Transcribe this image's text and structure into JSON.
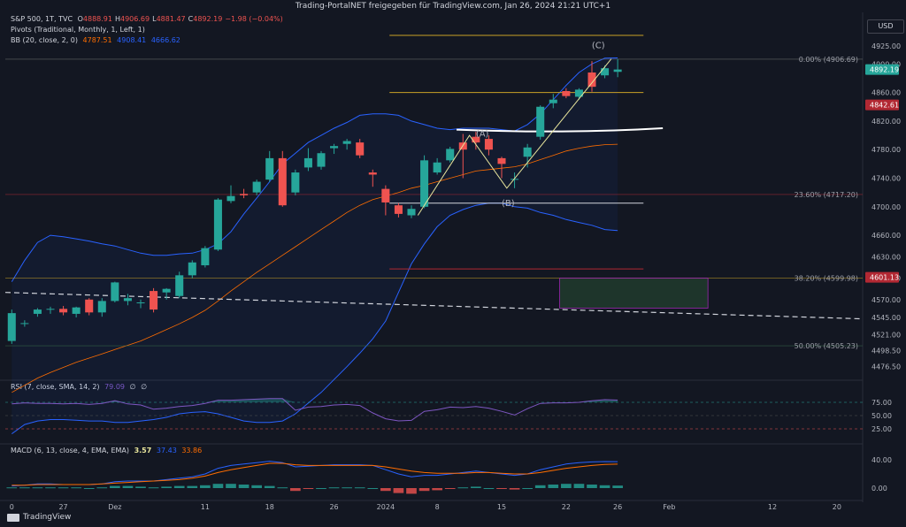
{
  "header": {
    "published": "Trading-PortalNET freigegeben für TradingView.com, Jan 26, 2024 21:21 UTC+1"
  },
  "legend": {
    "symbol": "S&P 500, 1T, TVC",
    "ohlc": [
      {
        "label": "O",
        "value": "4888.91"
      },
      {
        "label": "H",
        "value": "4906.69"
      },
      {
        "label": "L",
        "value": "4881.47"
      },
      {
        "label": "C",
        "value": "4892.19"
      },
      {
        "label": "",
        "value": "−1.98 (−0.04%)"
      }
    ],
    "pivots": "Pivots (Traditional, Monthly, 1, Left, 1)",
    "bb_label": "BB (20, close, 2, 0)",
    "bb_values": [
      "4787.51",
      "4908.41",
      "4666.62"
    ],
    "rsi_label": "RSI (7, close, SMA, 14, 2)",
    "rsi_values": [
      "79.09",
      "∅",
      "∅"
    ],
    "macd_label": "MACD (6, 13, close, 4, EMA, EMA)",
    "macd_values": [
      "3.57",
      "37.43",
      "33.86"
    ]
  },
  "currency": "USD",
  "brand": "TradingView",
  "colors": {
    "background": "#131722",
    "up": "#26a69a",
    "down": "#ef5350",
    "bb_line": "#2962ff",
    "bb_basis": "#ff6d00",
    "fib_gold": "#c9a227",
    "fib_red": "#b22833",
    "wave": "#e8e59c",
    "rsi": "#7e57c2",
    "macd": "#2962ff",
    "signal": "#ff6d00"
  },
  "chart_data": {
    "type": "candlestick",
    "price_axis": {
      "range": [
        4462,
        4940
      ],
      "ticks": [
        "4925.00",
        "4900.00",
        "4860.00",
        "4820.00",
        "4780.00",
        "4740.00",
        "4700.00",
        "4660.00",
        "4630.00",
        "4600.00",
        "4570.00",
        "4545.00",
        "4521.00",
        "4498.50",
        "4476.50"
      ]
    },
    "price_labels": [
      {
        "value": 4892.19,
        "text": "4892.19",
        "color": "#26a69a"
      },
      {
        "value": 4842.61,
        "text": "4842.61",
        "color": "#b22833"
      },
      {
        "value": 4601.13,
        "text": "4601.13",
        "color": "#b22833"
      }
    ],
    "time_axis": {
      "labels": [
        {
          "text": "0",
          "index": 0
        },
        {
          "text": "27",
          "index": 4
        },
        {
          "text": "Dez",
          "index": 8
        },
        {
          "text": "11",
          "index": 15
        },
        {
          "text": "18",
          "index": 20
        },
        {
          "text": "26",
          "index": 25
        },
        {
          "text": "2024",
          "index": 29
        },
        {
          "text": "8",
          "index": 33
        },
        {
          "text": "15",
          "index": 38
        },
        {
          "text": "22",
          "index": 43
        },
        {
          "text": "26",
          "index": 47
        },
        {
          "text": "Feb",
          "index": 51
        },
        {
          "text": "12",
          "index": 59
        },
        {
          "text": "20",
          "index": 64
        }
      ],
      "index_range": [
        -0.5,
        66
      ]
    },
    "candles": [
      {
        "o": 4512,
        "h": 4556,
        "l": 4508,
        "c": 4551
      },
      {
        "o": 4537,
        "h": 4541,
        "l": 4532,
        "c": 4537
      },
      {
        "o": 4550,
        "h": 4558,
        "l": 4546,
        "c": 4556
      },
      {
        "o": 4556,
        "h": 4560,
        "l": 4550,
        "c": 4557
      },
      {
        "o": 4557,
        "h": 4561,
        "l": 4548,
        "c": 4552
      },
      {
        "o": 4550,
        "h": 4560,
        "l": 4545,
        "c": 4559
      },
      {
        "o": 4570,
        "h": 4572,
        "l": 4548,
        "c": 4552
      },
      {
        "o": 4552,
        "h": 4572,
        "l": 4546,
        "c": 4568
      },
      {
        "o": 4568,
        "h": 4595,
        "l": 4566,
        "c": 4594
      },
      {
        "o": 4568,
        "h": 4578,
        "l": 4562,
        "c": 4572
      },
      {
        "o": 4565,
        "h": 4570,
        "l": 4558,
        "c": 4566
      },
      {
        "o": 4582,
        "h": 4586,
        "l": 4552,
        "c": 4556
      },
      {
        "o": 4580,
        "h": 4586,
        "l": 4570,
        "c": 4585
      },
      {
        "o": 4575,
        "h": 4609,
        "l": 4572,
        "c": 4604
      },
      {
        "o": 4604,
        "h": 4625,
        "l": 4600,
        "c": 4622
      },
      {
        "o": 4618,
        "h": 4645,
        "l": 4615,
        "c": 4642
      },
      {
        "o": 4640,
        "h": 4712,
        "l": 4638,
        "c": 4710
      },
      {
        "o": 4708,
        "h": 4730,
        "l": 4705,
        "c": 4715
      },
      {
        "o": 4718,
        "h": 4725,
        "l": 4712,
        "c": 4716
      },
      {
        "o": 4720,
        "h": 4738,
        "l": 4716,
        "c": 4735
      },
      {
        "o": 4738,
        "h": 4778,
        "l": 4735,
        "c": 4768
      },
      {
        "o": 4768,
        "h": 4778,
        "l": 4700,
        "c": 4702
      },
      {
        "o": 4720,
        "h": 4752,
        "l": 4716,
        "c": 4748
      },
      {
        "o": 4755,
        "h": 4782,
        "l": 4750,
        "c": 4768
      },
      {
        "o": 4756,
        "h": 4778,
        "l": 4752,
        "c": 4775
      },
      {
        "o": 4782,
        "h": 4788,
        "l": 4774,
        "c": 4785
      },
      {
        "o": 4788,
        "h": 4795,
        "l": 4780,
        "c": 4792
      },
      {
        "o": 4790,
        "h": 4795,
        "l": 4768,
        "c": 4772
      },
      {
        "o": 4748,
        "h": 4752,
        "l": 4728,
        "c": 4745
      },
      {
        "o": 4725,
        "h": 4730,
        "l": 4688,
        "c": 4706
      },
      {
        "o": 4702,
        "h": 4705,
        "l": 4685,
        "c": 4690
      },
      {
        "o": 4688,
        "h": 4702,
        "l": 4684,
        "c": 4697
      },
      {
        "o": 4700,
        "h": 4772,
        "l": 4698,
        "c": 4765
      },
      {
        "o": 4748,
        "h": 4768,
        "l": 4745,
        "c": 4762
      },
      {
        "o": 4765,
        "h": 4784,
        "l": 4762,
        "c": 4781
      },
      {
        "o": 4790,
        "h": 4802,
        "l": 4740,
        "c": 4780
      },
      {
        "o": 4798,
        "h": 4805,
        "l": 4780,
        "c": 4790
      },
      {
        "o": 4795,
        "h": 4800,
        "l": 4772,
        "c": 4780
      },
      {
        "o": 4768,
        "h": 4770,
        "l": 4740,
        "c": 4760
      },
      {
        "o": 4739,
        "h": 4748,
        "l": 4726,
        "c": 4739
      },
      {
        "o": 4770,
        "h": 4788,
        "l": 4755,
        "c": 4783
      },
      {
        "o": 4798,
        "h": 4842,
        "l": 4794,
        "c": 4840
      },
      {
        "o": 4845,
        "h": 4858,
        "l": 4838,
        "c": 4850
      },
      {
        "o": 4862,
        "h": 4866,
        "l": 4852,
        "c": 4855
      },
      {
        "o": 4854,
        "h": 4866,
        "l": 4850,
        "c": 4864
      },
      {
        "o": 4888,
        "h": 4904,
        "l": 4861,
        "c": 4868
      },
      {
        "o": 4884,
        "h": 4898,
        "l": 4880,
        "c": 4894
      },
      {
        "o": 4888.91,
        "h": 4906.69,
        "l": 4881.47,
        "c": 4892.19
      }
    ],
    "bb_upper": [
      4595,
      4625,
      4650,
      4660,
      4658,
      4655,
      4652,
      4648,
      4645,
      4640,
      4635,
      4632,
      4632,
      4634,
      4635,
      4640,
      4648,
      4665,
      4690,
      4712,
      4735,
      4760,
      4775,
      4790,
      4800,
      4810,
      4818,
      4828,
      4830,
      4830,
      4828,
      4820,
      4815,
      4810,
      4808,
      4810,
      4810,
      4810,
      4808,
      4806,
      4815,
      4830,
      4850,
      4870,
      4888,
      4900,
      4908,
      4908.41
    ],
    "bb_lower": [
      4382,
      4395,
      4400,
      4402,
      4402,
      4401,
      4400,
      4400,
      4398,
      4398,
      4400,
      4402,
      4405,
      4410,
      4412,
      4413,
      4410,
      4405,
      4400,
      4398,
      4398,
      4400,
      4410,
      4425,
      4440,
      4458,
      4476,
      4495,
      4515,
      4540,
      4580,
      4620,
      4648,
      4672,
      4688,
      4696,
      4702,
      4705,
      4705,
      4700,
      4698,
      4692,
      4688,
      4682,
      4678,
      4674,
      4668,
      4666.62
    ],
    "bb_basis": [
      4440,
      4450,
      4460,
      4468,
      4475,
      4482,
      4488,
      4494,
      4500,
      4506,
      4512,
      4520,
      4528,
      4536,
      4545,
      4555,
      4568,
      4582,
      4595,
      4608,
      4620,
      4632,
      4644,
      4656,
      4668,
      4680,
      4692,
      4702,
      4710,
      4715,
      4720,
      4726,
      4730,
      4735,
      4740,
      4745,
      4750,
      4752,
      4754,
      4756,
      4760,
      4766,
      4772,
      4778,
      4782,
      4785,
      4787,
      4787.51
    ],
    "fib_levels": [
      {
        "label": "0.00% (4906.69)",
        "value": 4906.69
      },
      {
        "label": "23.60% (4717.20)",
        "value": 4717.2
      },
      {
        "label": "38.20% (4599.98)",
        "value": 4599.98
      },
      {
        "label": "50.00% (4505.23)",
        "value": 4505.23
      }
    ],
    "wave_labels": [
      {
        "text": "(A)",
        "index": 36.5,
        "price": 4798
      },
      {
        "text": "(B)",
        "index": 38.5,
        "price": 4701
      },
      {
        "text": "(C)",
        "index": 45.5,
        "price": 4922
      }
    ],
    "wave_path": [
      {
        "index": 31.5,
        "price": 4688
      },
      {
        "index": 35.5,
        "price": 4800
      },
      {
        "index": 38.4,
        "price": 4726
      },
      {
        "index": 46.5,
        "price": 4907
      }
    ],
    "rsi": {
      "ticks": [
        "75.00",
        "50.00",
        "25.00"
      ],
      "values": [
        72,
        74,
        73,
        73,
        72,
        73,
        71,
        73,
        78,
        72,
        70,
        62,
        64,
        67,
        69,
        73,
        79,
        79,
        80,
        81,
        82,
        82,
        60,
        66,
        67,
        70,
        71,
        69,
        55,
        44,
        40,
        41,
        58,
        61,
        66,
        65,
        67,
        64,
        58,
        51,
        63,
        73,
        74,
        74,
        75,
        78,
        80,
        79.09
      ]
    },
    "macd": {
      "ticks": [
        "40.00",
        "0.00"
      ],
      "macd": [
        3,
        4,
        6,
        6,
        5,
        5,
        5,
        6,
        9,
        10,
        10,
        10,
        12,
        14,
        16,
        20,
        28,
        32,
        34,
        36,
        38,
        36,
        30,
        31,
        32,
        33,
        33,
        33,
        32,
        26,
        20,
        16,
        18,
        18,
        20,
        22,
        24,
        22,
        20,
        18,
        20,
        26,
        30,
        34,
        36,
        37,
        37.5,
        37.43
      ],
      "signal": [
        4,
        4,
        5,
        5,
        5,
        5,
        5,
        6,
        7,
        8,
        9,
        10,
        11,
        12,
        14,
        17,
        22,
        26,
        29,
        32,
        35,
        35,
        33,
        32,
        32,
        32,
        32,
        32,
        32,
        30,
        27,
        24,
        22,
        21,
        21,
        21,
        22,
        22,
        21,
        20,
        20,
        22,
        25,
        28,
        30,
        32,
        33.5,
        33.86
      ],
      "hist": [
        1,
        1,
        1,
        1,
        1,
        1,
        0,
        1,
        3,
        3,
        2,
        1,
        2,
        3,
        3,
        4,
        6,
        6,
        5,
        4,
        3,
        1,
        -4,
        -1,
        0,
        1,
        1,
        1,
        0,
        -4,
        -7,
        -8,
        -4,
        -3,
        -1,
        1,
        2,
        0,
        -1,
        -2,
        0,
        4,
        5,
        6,
        6,
        5,
        4,
        3.57
      ]
    }
  }
}
